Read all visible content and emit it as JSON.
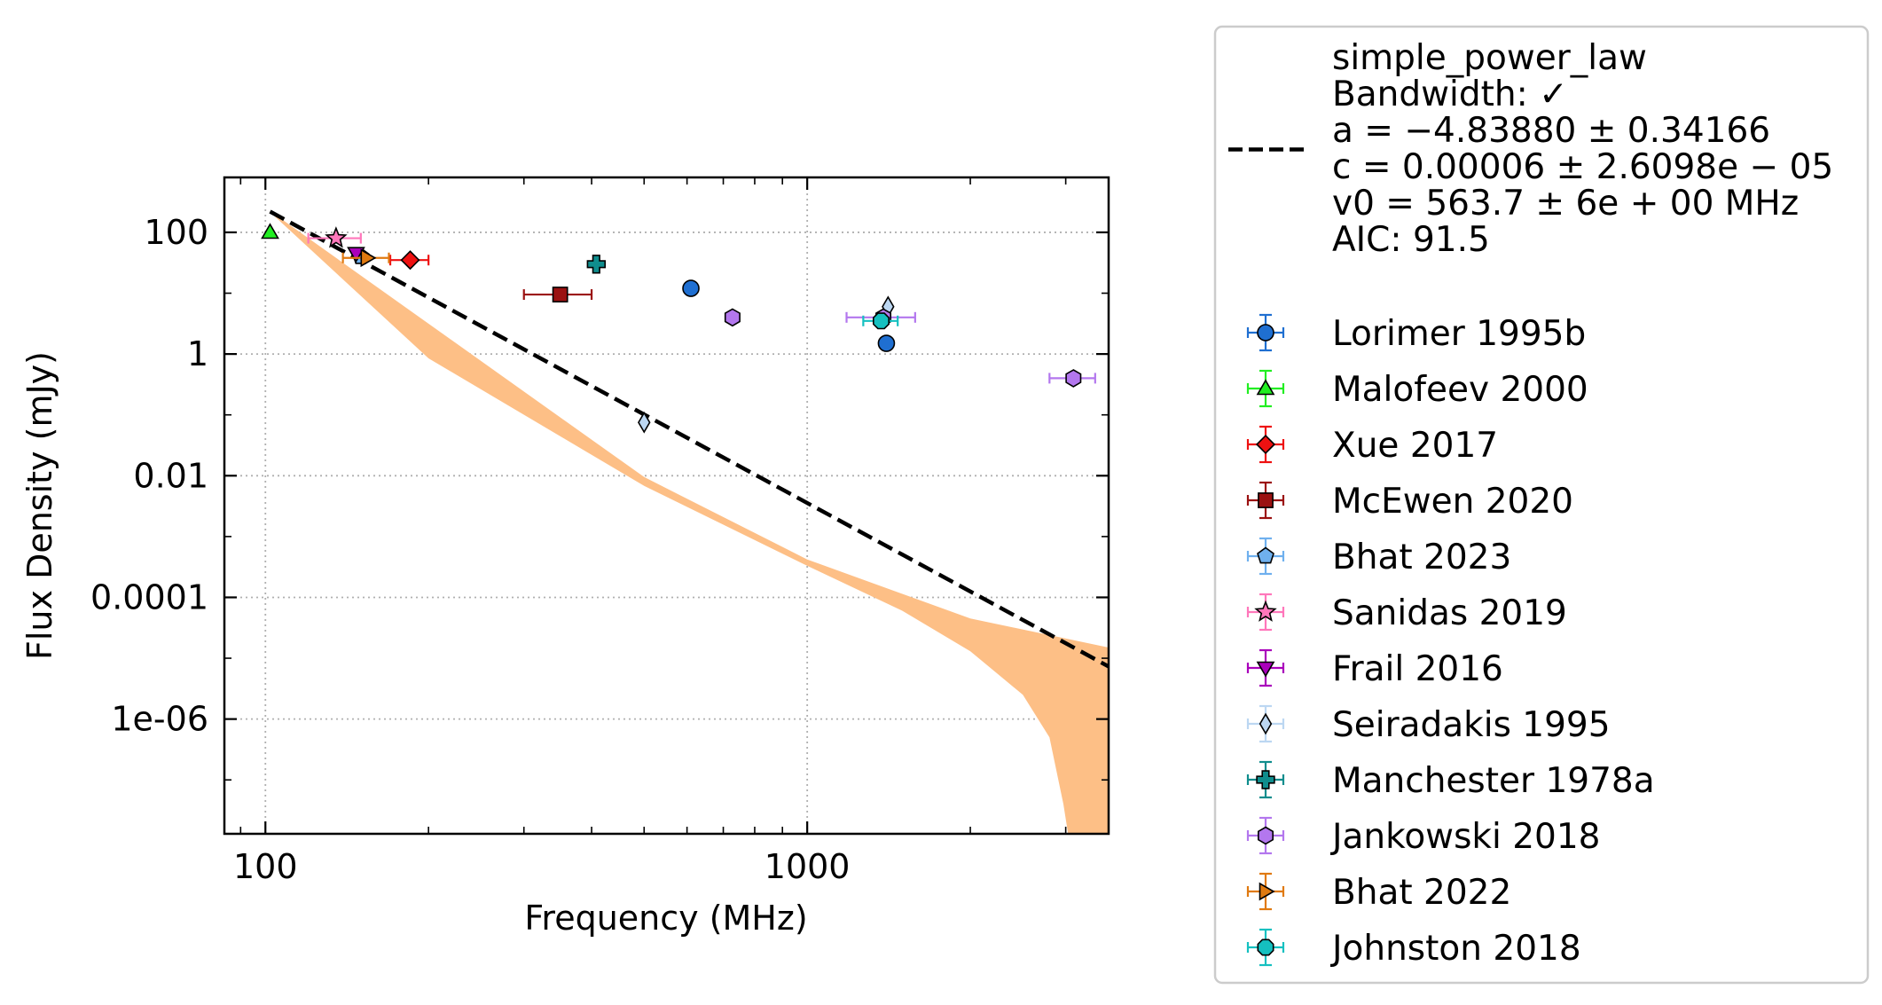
{
  "chart_data": {
    "type": "scatter",
    "title": "",
    "xlabel": "Frequency (MHz)",
    "ylabel": "Flux Density (mJy)",
    "xscale": "log",
    "yscale": "log",
    "xlim": [
      84,
      3600
    ],
    "ylim": [
      1.3e-08,
      800
    ],
    "grid": true,
    "legend_position": "outside-right",
    "x_ticks": [
      {
        "value": 100,
        "label": "100"
      },
      {
        "value": 1000,
        "label": "1000"
      }
    ],
    "y_ticks": [
      {
        "value": 100,
        "label": "100"
      },
      {
        "value": 1,
        "label": "1"
      },
      {
        "value": 0.01,
        "label": "0.01"
      },
      {
        "value": 0.0001,
        "label": "0.0001"
      },
      {
        "value": 1e-06,
        "label": "1e-06"
      }
    ],
    "fit": {
      "model": "simple_power_law",
      "legend_lines": [
        "simple_power_law",
        "Bandwidth: ✓",
        "a = −4.83880 ± 0.34166",
        "c = 0.00006 ± 2.6098e − 05",
        "v0 = 563.7 ± 6e + 00 MHz",
        "AIC: 91.5"
      ],
      "line_color": "#000000",
      "band_color": "#fdbf86",
      "line": [
        {
          "x": 102,
          "y": 220
        },
        {
          "x": 3600,
          "y": 7.3e-06
        }
      ],
      "band_upper": [
        {
          "x": 102,
          "y": 225
        },
        {
          "x": 500,
          "y": 0.0095
        },
        {
          "x": 1000,
          "y": 0.00042
        },
        {
          "x": 2000,
          "y": 4.5e-05
        },
        {
          "x": 3600,
          "y": 1.5e-05
        }
      ],
      "band_lower": [
        {
          "x": 3600,
          "y": 1.3e-08
        },
        {
          "x": 3030,
          "y": 1.3e-08
        },
        {
          "x": 2970,
          "y": 4e-08
        },
        {
          "x": 2800,
          "y": 5e-07
        },
        {
          "x": 2500,
          "y": 2.5e-06
        },
        {
          "x": 2000,
          "y": 1.3e-05
        },
        {
          "x": 1500,
          "y": 6e-05
        },
        {
          "x": 1000,
          "y": 0.00033
        },
        {
          "x": 500,
          "y": 0.0068
        },
        {
          "x": 200,
          "y": 0.85
        },
        {
          "x": 102,
          "y": 215
        }
      ]
    },
    "series": [
      {
        "name": "Lorimer 1995b",
        "marker": "circle",
        "color": "#1f6fd1",
        "points": [
          {
            "x": 610,
            "y": 12
          },
          {
            "x": 1400,
            "y": 1.5
          }
        ]
      },
      {
        "name": "Malofeev 2000",
        "marker": "triangle-up",
        "color": "#22ee22",
        "points": [
          {
            "x": 102,
            "y": 100
          }
        ]
      },
      {
        "name": "Xue 2017",
        "marker": "diamond",
        "color": "#ee1111",
        "points": [
          {
            "x": 185,
            "y": 35,
            "xerr": 15
          }
        ]
      },
      {
        "name": "McEwen 2020",
        "marker": "square",
        "color": "#9b1111",
        "points": [
          {
            "x": 350,
            "y": 9.5,
            "xerr": 50
          }
        ]
      },
      {
        "name": "Bhat 2023",
        "marker": "pentagon",
        "color": "#6fb0ee",
        "points": [
          {
            "x": 150,
            "y": 40
          }
        ]
      },
      {
        "name": "Sanidas 2019",
        "marker": "star",
        "color": "#ff77bb",
        "points": [
          {
            "x": 135,
            "y": 80,
            "xerr": 15
          }
        ]
      },
      {
        "name": "Frail 2016",
        "marker": "triangle-down",
        "color": "#aa00bb",
        "points": [
          {
            "x": 147,
            "y": 45
          }
        ]
      },
      {
        "name": "Seiradakis 1995",
        "marker": "thin-diamond",
        "color": "#bcd7f2",
        "points": [
          {
            "x": 500,
            "y": 0.075
          },
          {
            "x": 1410,
            "y": 6
          }
        ]
      },
      {
        "name": "Manchester 1978a",
        "marker": "plus",
        "color": "#0f8d8d",
        "points": [
          {
            "x": 408,
            "y": 30
          }
        ]
      },
      {
        "name": "Jankowski 2018",
        "marker": "hexagon",
        "color": "#b377ee",
        "points": [
          {
            "x": 728,
            "y": 4
          },
          {
            "x": 1382,
            "y": 4,
            "xerr": 200
          },
          {
            "x": 3100,
            "y": 0.4,
            "xerr": 300
          }
        ]
      },
      {
        "name": "Bhat 2022",
        "marker": "triangle-right",
        "color": "#e07a10",
        "points": [
          {
            "x": 154,
            "y": 38,
            "xerr": 15
          }
        ]
      },
      {
        "name": "Johnston 2018",
        "marker": "octagon",
        "color": "#15c0c0",
        "points": [
          {
            "x": 1369,
            "y": 3.5,
            "xerr": 100
          }
        ]
      }
    ]
  }
}
